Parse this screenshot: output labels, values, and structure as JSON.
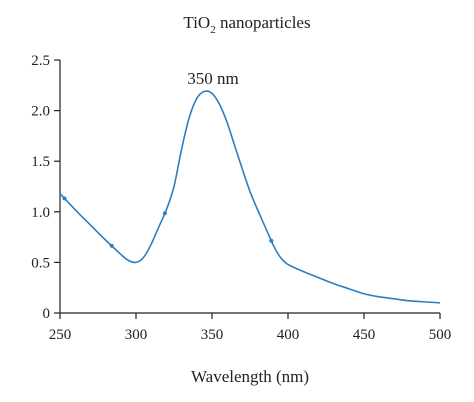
{
  "chart_data": {
    "type": "line",
    "title_main": "TiO",
    "title_sub": "2",
    "title_rest": " nanoparticles",
    "xlabel": "Wavelength (nm)",
    "ylabel": "",
    "xlim": [
      250,
      500
    ],
    "ylim": [
      0,
      2.5
    ],
    "x_ticks": [
      250,
      300,
      350,
      400,
      450,
      500
    ],
    "y_ticks": [
      0,
      0.5,
      1.0,
      1.5,
      2.0,
      2.5
    ],
    "y_tick_labels": [
      "0",
      "0.5",
      "1.0",
      "1.5",
      "2.0",
      "2.5"
    ],
    "grid": false,
    "color": "#2a7fc4",
    "series": [
      {
        "x": [
          250,
          260,
          270,
          280,
          290,
          295,
          300,
          305,
          310,
          315,
          320,
          325,
          330,
          335,
          340,
          345,
          350,
          355,
          360,
          365,
          370,
          375,
          380,
          385,
          390,
          395,
          400,
          410,
          420,
          430,
          440,
          450,
          460,
          470,
          480,
          490,
          500
        ],
        "y": [
          1.18,
          1.02,
          0.87,
          0.72,
          0.58,
          0.52,
          0.5,
          0.55,
          0.68,
          0.85,
          1.02,
          1.25,
          1.62,
          1.93,
          2.12,
          2.19,
          2.17,
          2.06,
          1.88,
          1.65,
          1.42,
          1.2,
          1.02,
          0.85,
          0.68,
          0.55,
          0.48,
          0.41,
          0.35,
          0.29,
          0.24,
          0.19,
          0.16,
          0.14,
          0.12,
          0.11,
          0.1
        ]
      }
    ],
    "markers_x": [
      253,
      284,
      319,
      389
    ],
    "annotations": [
      {
        "text": "350 nm",
        "x": 350,
        "y": 2.32
      }
    ]
  }
}
